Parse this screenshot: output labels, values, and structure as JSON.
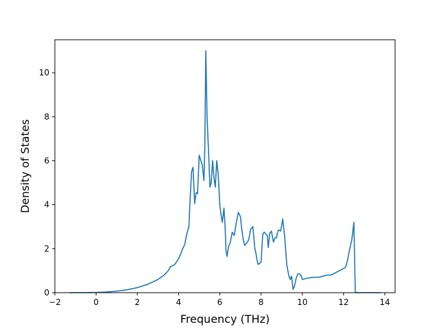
{
  "chart_data": {
    "type": "line",
    "title": "",
    "xlabel": "Frequency (THz)",
    "ylabel": "Density of States",
    "xlim": [
      -2,
      14.5
    ],
    "ylim": [
      0,
      11.5
    ],
    "xticks": [
      -2,
      0,
      2,
      4,
      6,
      8,
      10,
      12,
      14
    ],
    "yticks": [
      0,
      2,
      4,
      6,
      8,
      10
    ],
    "grid": false,
    "legend": "none",
    "line_color": "#1f77b4",
    "series": [
      {
        "x": [
          -1.3,
          -0.5,
          0.0,
          0.5,
          1.0,
          1.5,
          2.0,
          2.5,
          3.0,
          3.3,
          3.5,
          3.6,
          3.8,
          3.9,
          4.0,
          4.1,
          4.2,
          4.3,
          4.37,
          4.45,
          4.5,
          4.55,
          4.63,
          4.7,
          4.78,
          4.85,
          4.92,
          5.0,
          5.05,
          5.15,
          5.23,
          5.27,
          5.32,
          5.38,
          5.45,
          5.52,
          5.58,
          5.65,
          5.72,
          5.78,
          5.85,
          5.92,
          6.0,
          6.05,
          6.12,
          6.2,
          6.25,
          6.3,
          6.35,
          6.42,
          6.5,
          6.6,
          6.7,
          6.8,
          6.9,
          7.0,
          7.05,
          7.12,
          7.2,
          7.3,
          7.4,
          7.5,
          7.6,
          7.7,
          7.75,
          7.8,
          7.85,
          7.9,
          8.0,
          8.08,
          8.15,
          8.2,
          8.3,
          8.35,
          8.42,
          8.5,
          8.6,
          8.68,
          8.75,
          8.8,
          8.85,
          8.95,
          9.05,
          9.15,
          9.25,
          9.35,
          9.42,
          9.48,
          9.55,
          9.62,
          9.7,
          9.78,
          9.88,
          9.95,
          10.0,
          10.2,
          10.5,
          10.8,
          11.0,
          11.2,
          11.4,
          11.6,
          11.8,
          12.0,
          12.1,
          12.2,
          12.3,
          12.4,
          12.5,
          12.57,
          12.6,
          13.0,
          13.5,
          13.8
        ],
        "y": [
          0,
          0,
          0.01,
          0.03,
          0.07,
          0.13,
          0.23,
          0.38,
          0.6,
          0.8,
          1.0,
          1.18,
          1.27,
          1.4,
          1.55,
          1.75,
          2.0,
          2.2,
          2.55,
          2.85,
          3.0,
          4.1,
          5.5,
          5.7,
          4.05,
          4.55,
          4.5,
          6.25,
          6.1,
          5.8,
          5.1,
          6.5,
          11.0,
          8.0,
          6.5,
          4.8,
          5.0,
          6.0,
          5.2,
          4.8,
          6.0,
          5.4,
          4.0,
          3.6,
          3.2,
          3.85,
          3.1,
          1.9,
          1.65,
          2.1,
          2.25,
          2.75,
          2.6,
          3.2,
          3.65,
          3.45,
          3.0,
          2.5,
          2.15,
          2.25,
          2.4,
          2.9,
          3.0,
          2.0,
          1.8,
          1.5,
          1.3,
          1.3,
          1.4,
          2.65,
          2.75,
          2.7,
          2.6,
          2.05,
          2.7,
          2.8,
          2.3,
          2.5,
          2.5,
          2.75,
          2.85,
          2.8,
          3.35,
          2.5,
          1.25,
          0.75,
          0.6,
          0.75,
          0.15,
          0.3,
          0.65,
          0.85,
          0.85,
          0.75,
          0.6,
          0.65,
          0.7,
          0.7,
          0.75,
          0.8,
          0.8,
          0.9,
          1.0,
          1.1,
          1.15,
          1.5,
          2.0,
          2.4,
          3.2,
          0.05,
          0,
          0,
          0,
          0
        ]
      }
    ]
  }
}
